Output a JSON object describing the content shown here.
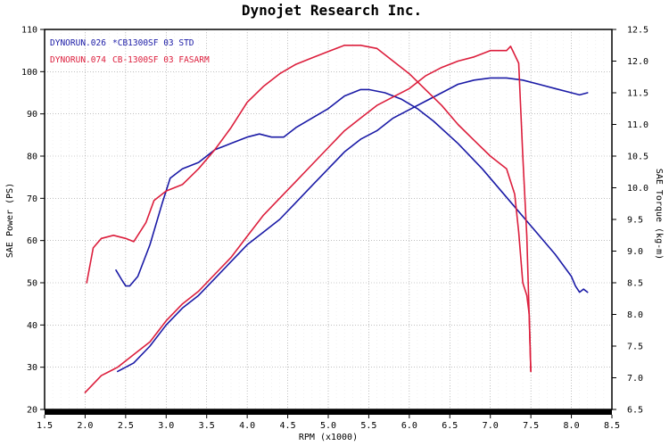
{
  "chart_data": {
    "type": "line",
    "title": "Dynojet  Research  Inc.",
    "xlabel": "RPM (x1000)",
    "ylabel_left": "SAE Power (PS)",
    "ylabel_right": "SAE Torque (kg-m)",
    "xlim": [
      1.5,
      8.5
    ],
    "ylim_left": [
      20,
      110
    ],
    "ylim_right": [
      6.5,
      12.5
    ],
    "x_ticks": [
      "1.5",
      "2.0",
      "2.5",
      "3.0",
      "3.5",
      "4.0",
      "4.5",
      "5.0",
      "5.5",
      "6.0",
      "6.5",
      "7.0",
      "7.5",
      "8.0",
      "8.5"
    ],
    "y_ticks_left": [
      "20",
      "30",
      "40",
      "50",
      "60",
      "70",
      "80",
      "90",
      "100",
      "110"
    ],
    "y_ticks_right": [
      "6.5",
      "7.0",
      "7.5",
      "8.0",
      "8.5",
      "9.0",
      "9.5",
      "10.0",
      "10.5",
      "11.0",
      "11.5",
      "12.0",
      "12.5"
    ],
    "grid": true,
    "legend": [
      {
        "run": "DYNORUN.026",
        "desc": "*CB1300SF 03  STD",
        "color": "#1a1aa6"
      },
      {
        "run": "DYNORUN.074",
        "desc": "CB-1300SF 03 FASARM",
        "color": "#dc1e3c"
      }
    ],
    "series": [
      {
        "name": "DYNORUN.026 *CB1300SF 03  STD",
        "measure": "power",
        "axis": "left",
        "color": "#1a1aa6",
        "x": [
          2.4,
          2.6,
          2.8,
          3.0,
          3.2,
          3.4,
          3.6,
          3.8,
          4.0,
          4.2,
          4.4,
          4.6,
          4.8,
          5.0,
          5.2,
          5.4,
          5.6,
          5.8,
          6.0,
          6.2,
          6.4,
          6.6,
          6.8,
          7.0,
          7.2,
          7.4,
          7.6,
          7.8,
          8.0,
          8.1,
          8.2
        ],
        "y": [
          29,
          31,
          35,
          40,
          44,
          47,
          51,
          55,
          59,
          62,
          65,
          69,
          73,
          77,
          81,
          84,
          86,
          89,
          91,
          93,
          95,
          97,
          98,
          98.5,
          98.5,
          98,
          97,
          96,
          95,
          94.5,
          95
        ]
      },
      {
        "name": "DYNORUN.026 *CB1300SF 03  STD",
        "measure": "torque",
        "axis": "right",
        "color": "#1a1aa6",
        "x": [
          2.38,
          2.45,
          2.5,
          2.55,
          2.65,
          2.8,
          2.95,
          3.05,
          3.2,
          3.4,
          3.6,
          3.8,
          4.0,
          4.15,
          4.3,
          4.45,
          4.6,
          4.8,
          5.0,
          5.2,
          5.4,
          5.5,
          5.7,
          5.9,
          6.1,
          6.3,
          6.6,
          6.9,
          7.2,
          7.5,
          7.8,
          8.0,
          8.05,
          8.1,
          8.15,
          8.2
        ],
        "y": [
          8.7,
          8.55,
          8.45,
          8.45,
          8.6,
          9.1,
          9.75,
          10.15,
          10.3,
          10.4,
          10.6,
          10.7,
          10.8,
          10.85,
          10.8,
          10.8,
          10.95,
          11.1,
          11.25,
          11.45,
          11.55,
          11.55,
          11.5,
          11.4,
          11.25,
          11.05,
          10.7,
          10.3,
          9.85,
          9.4,
          8.95,
          8.6,
          8.45,
          8.35,
          8.4,
          8.35
        ]
      },
      {
        "name": "DYNORUN.074 CB-1300SF 03 FASARM",
        "measure": "power",
        "axis": "left",
        "color": "#dc1e3c",
        "x": [
          2.0,
          2.2,
          2.4,
          2.6,
          2.8,
          3.0,
          3.2,
          3.4,
          3.6,
          3.8,
          4.0,
          4.2,
          4.4,
          4.6,
          4.8,
          5.0,
          5.2,
          5.4,
          5.6,
          5.8,
          6.0,
          6.2,
          6.4,
          6.6,
          6.8,
          7.0,
          7.1,
          7.2,
          7.25,
          7.3,
          7.35,
          7.4,
          7.45,
          7.5
        ],
        "y": [
          24,
          28,
          30,
          33,
          36,
          41,
          45,
          48,
          52,
          56,
          61,
          66,
          70,
          74,
          78,
          82,
          86,
          89,
          92,
          94,
          96,
          99,
          101,
          102.5,
          103.5,
          105,
          105,
          105,
          106,
          104,
          102,
          80,
          61,
          29
        ]
      },
      {
        "name": "DYNORUN.074 CB-1300SF 03 FASARM",
        "measure": "torque",
        "axis": "right",
        "color": "#dc1e3c",
        "x": [
          2.02,
          2.1,
          2.2,
          2.35,
          2.5,
          2.6,
          2.65,
          2.75,
          2.85,
          3.0,
          3.2,
          3.4,
          3.6,
          3.8,
          4.0,
          4.2,
          4.4,
          4.6,
          4.8,
          5.0,
          5.2,
          5.4,
          5.6,
          5.8,
          6.0,
          6.2,
          6.4,
          6.6,
          6.8,
          7.0,
          7.2,
          7.25,
          7.3,
          7.35,
          7.4,
          7.45,
          7.48,
          7.5
        ],
        "y": [
          8.5,
          9.05,
          9.2,
          9.25,
          9.2,
          9.15,
          9.25,
          9.45,
          9.8,
          9.95,
          10.05,
          10.3,
          10.6,
          10.95,
          11.35,
          11.6,
          11.8,
          11.95,
          12.05,
          12.15,
          12.25,
          12.25,
          12.2,
          12.0,
          11.8,
          11.55,
          11.3,
          11.0,
          10.75,
          10.5,
          10.3,
          10.1,
          9.9,
          9.3,
          8.5,
          8.3,
          8.0,
          7.1
        ]
      }
    ]
  }
}
